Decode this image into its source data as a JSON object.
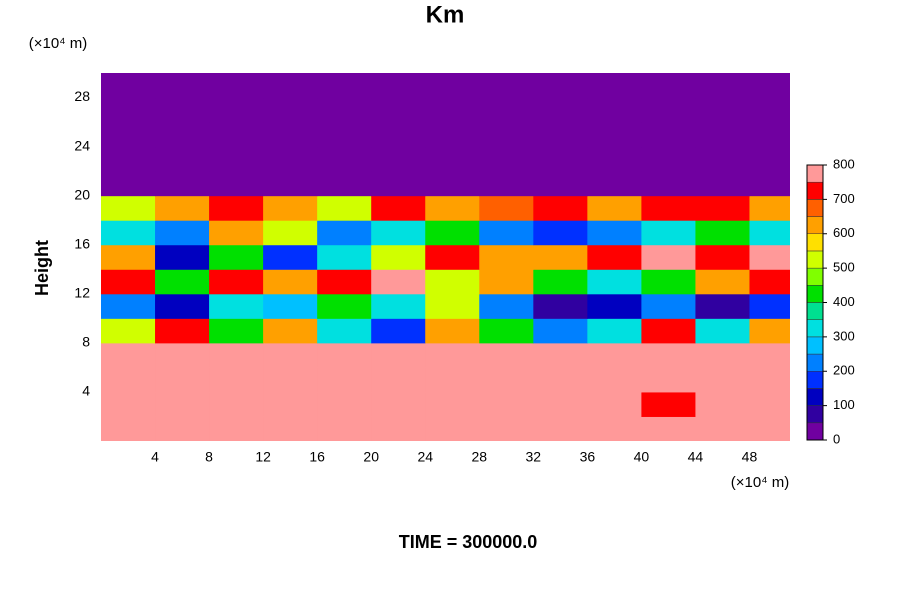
{
  "chart_data": {
    "type": "contour",
    "title": "Km",
    "y_label": "Height",
    "x_unit": "(×10⁴ m)",
    "y_unit": "(×10⁴ m)",
    "footer": "TIME = 300000.0",
    "x": [
      2,
      6,
      10,
      14,
      18,
      22,
      26,
      30,
      34,
      38,
      42,
      46,
      50
    ],
    "y": [
      1,
      3,
      5,
      7,
      9,
      11,
      13,
      15,
      17,
      19,
      21,
      23,
      25,
      27,
      29
    ],
    "z": [
      [
        800,
        800,
        800,
        800,
        800,
        800,
        800,
        800,
        800,
        800,
        800,
        800,
        800
      ],
      [
        800,
        800,
        800,
        800,
        800,
        800,
        800,
        800,
        800,
        800,
        700,
        800,
        800
      ],
      [
        800,
        750,
        800,
        800,
        800,
        800,
        750,
        800,
        800,
        800,
        800,
        800,
        800
      ],
      [
        800,
        800,
        800,
        800,
        800,
        800,
        800,
        800,
        800,
        800,
        800,
        800,
        800
      ],
      [
        500,
        700,
        400,
        600,
        300,
        150,
        600,
        400,
        200,
        300,
        700,
        300,
        600
      ],
      [
        200,
        100,
        300,
        250,
        400,
        300,
        500,
        200,
        50,
        100,
        200,
        50,
        150
      ],
      [
        700,
        400,
        700,
        600,
        700,
        800,
        500,
        600,
        400,
        300,
        400,
        600,
        700
      ],
      [
        600,
        100,
        400,
        150,
        300,
        500,
        700,
        600,
        600,
        700,
        800,
        700,
        800
      ],
      [
        300,
        200,
        600,
        500,
        200,
        300,
        400,
        200,
        150,
        200,
        300,
        400,
        300
      ],
      [
        500,
        600,
        700,
        600,
        500,
        700,
        600,
        650,
        700,
        600,
        700,
        700,
        600
      ],
      [
        0,
        0,
        0,
        0,
        0,
        0,
        0,
        0,
        0,
        0,
        0,
        0,
        0
      ],
      [
        0,
        0,
        0,
        0,
        0,
        0,
        0,
        0,
        0,
        0,
        0,
        0,
        0
      ],
      [
        0,
        0,
        0,
        0,
        0,
        0,
        0,
        0,
        0,
        0,
        0,
        0,
        0
      ],
      [
        0,
        0,
        0,
        0,
        0,
        0,
        0,
        0,
        0,
        0,
        0,
        0,
        0
      ],
      [
        0,
        0,
        0,
        0,
        0,
        0,
        0,
        0,
        0,
        0,
        0,
        0,
        0
      ]
    ],
    "xlim": [
      0,
      51
    ],
    "ylim": [
      0,
      30
    ],
    "xticks": [
      4,
      8,
      12,
      16,
      20,
      24,
      28,
      32,
      36,
      40,
      44,
      48
    ],
    "yticks": [
      4,
      8,
      12,
      16,
      20,
      24,
      28
    ],
    "zlim": [
      0,
      800
    ],
    "zstep": 50,
    "zticks": [
      0,
      100,
      200,
      300,
      400,
      500,
      600,
      700,
      800
    ],
    "colors": [
      "#7000a0",
      "#3000a0",
      "#0000c0",
      "#0030ff",
      "#0080ff",
      "#00c0ff",
      "#00e0e0",
      "#00e090",
      "#00e000",
      "#80ff00",
      "#d0ff00",
      "#ffe000",
      "#ffa000",
      "#ff6000",
      "#ff0000",
      "#ff9999"
    ]
  }
}
